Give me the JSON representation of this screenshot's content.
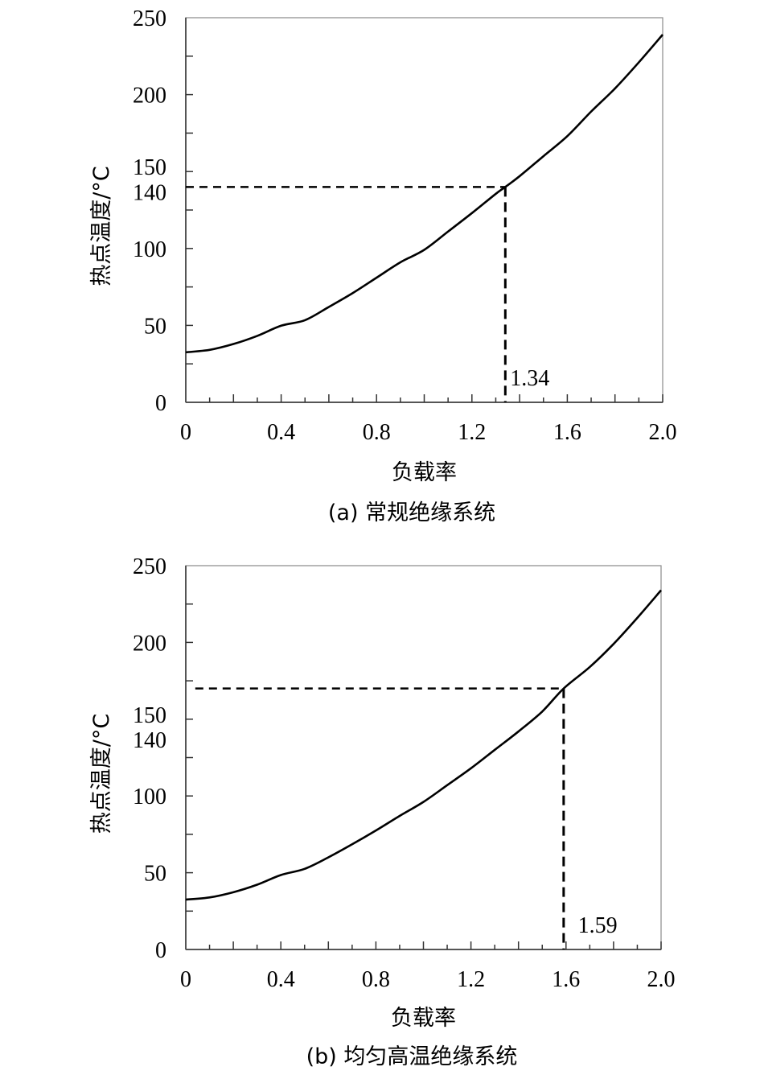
{
  "chart_data": [
    {
      "id": "a",
      "type": "line",
      "title": "(a) 常规绝缘系统",
      "xlabel": "负载率",
      "ylabel": "热点温度/°C",
      "xlim": [
        0,
        2.0
      ],
      "ylim": [
        0,
        250
      ],
      "x_ticks": [
        0,
        0.4,
        0.8,
        1.2,
        1.6,
        2.0
      ],
      "x_tick_labels": [
        "0",
        "0.4",
        "0.8",
        "1.2",
        "1.6",
        "2.0"
      ],
      "x_minor_step": 0.1,
      "y_ticks": [
        0,
        50,
        100,
        140,
        150,
        200,
        250
      ],
      "y_tick_labels": [
        "0",
        "50",
        "100",
        "140",
        "150",
        "200",
        "250"
      ],
      "y_minor_step": 25,
      "grid": false,
      "series": [
        {
          "name": "热点温度",
          "x": [
            0,
            0.1,
            0.2,
            0.3,
            0.4,
            0.5,
            0.6,
            0.7,
            0.8,
            0.9,
            1.0,
            1.1,
            1.2,
            1.3,
            1.34,
            1.4,
            1.5,
            1.6,
            1.7,
            1.8,
            1.9,
            2.0
          ],
          "values": [
            32.5,
            34.1,
            37.9,
            43.2,
            49.8,
            53.4,
            62.0,
            71.0,
            81.0,
            91.0,
            99.1,
            111.0,
            123.0,
            135.5,
            140.0,
            147.0,
            160.0,
            173.0,
            189.0,
            204.0,
            221.0,
            239.0
          ]
        }
      ],
      "annotations": [
        {
          "type": "hline",
          "y": 140,
          "x_from": 0,
          "x_to": 1.34,
          "style": "dashed"
        },
        {
          "type": "vline",
          "x": 1.34,
          "y_from": 0,
          "y_to": 140,
          "style": "dashed"
        },
        {
          "type": "text",
          "text": "1.34",
          "x": 1.36,
          "y": 12
        }
      ]
    },
    {
      "id": "b",
      "type": "line",
      "title": "(b)  均匀高温绝缘系统",
      "xlabel": "负载率",
      "ylabel": "热点温度/°C",
      "xlim": [
        0,
        2.0
      ],
      "ylim": [
        0,
        250
      ],
      "x_ticks": [
        0,
        0.4,
        0.8,
        1.2,
        1.6,
        2.0
      ],
      "x_tick_labels": [
        "0",
        "0.4",
        "0.8",
        "1.2",
        "1.6",
        "2.0"
      ],
      "x_minor_step": 0.1,
      "y_ticks": [
        0,
        50,
        100,
        140,
        150,
        200,
        250
      ],
      "y_tick_labels": [
        "0",
        "50",
        "100",
        "140",
        "150",
        "200",
        "250"
      ],
      "y_minor_step": 25,
      "grid": false,
      "series": [
        {
          "name": "热点温度",
          "x": [
            0,
            0.1,
            0.2,
            0.3,
            0.4,
            0.5,
            0.6,
            0.7,
            0.8,
            0.9,
            1.0,
            1.1,
            1.2,
            1.3,
            1.4,
            1.5,
            1.59,
            1.7,
            1.8,
            1.9,
            2.0
          ],
          "values": [
            32.5,
            33.9,
            37.3,
            42.2,
            48.5,
            52.5,
            60.0,
            68.5,
            77.5,
            87.0,
            96.1,
            107.0,
            118.0,
            130.0,
            142.0,
            155.0,
            170.0,
            184.0,
            199.0,
            216.0,
            234.0
          ]
        }
      ],
      "annotations": [
        {
          "type": "hline",
          "y": 170,
          "x_from": 0.04,
          "x_to": 1.59,
          "style": "dashed"
        },
        {
          "type": "vline",
          "x": 1.59,
          "y_from": 0,
          "y_to": 170,
          "style": "dashed"
        },
        {
          "type": "text",
          "text": "1.59",
          "x": 1.65,
          "y": 12
        }
      ]
    }
  ]
}
